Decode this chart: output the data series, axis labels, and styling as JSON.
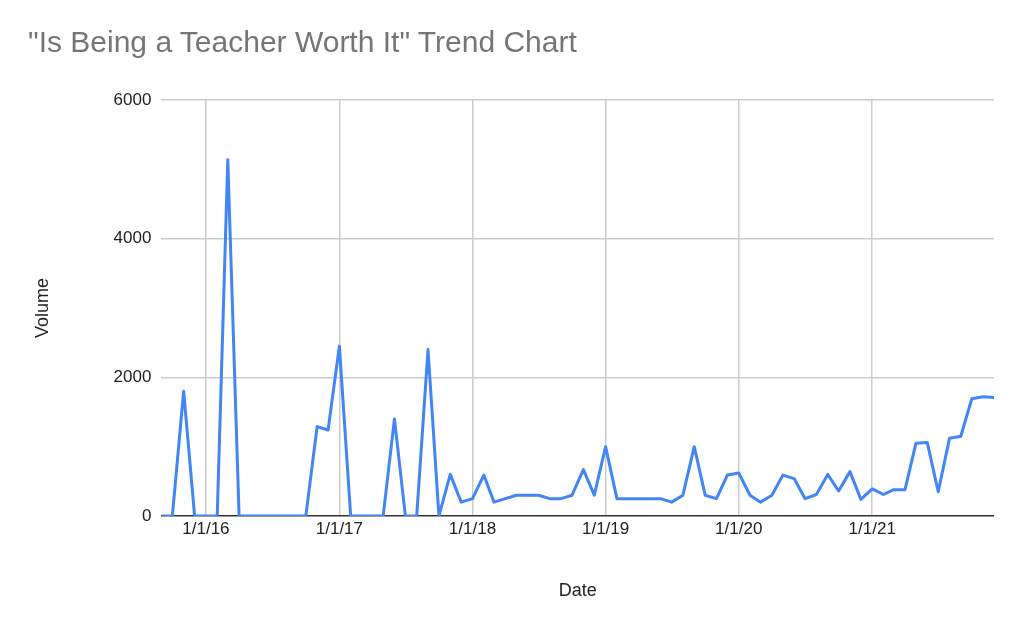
{
  "chart_data": {
    "type": "line",
    "title": "\"Is Being a Teacher Worth It\" Trend Chart",
    "xlabel": "Date",
    "ylabel": "Volume",
    "x": [
      "2015-09",
      "2015-10",
      "2015-11",
      "2015-12",
      "2016-01",
      "2016-02",
      "2016-03",
      "2016-04",
      "2016-05",
      "2016-06",
      "2016-07",
      "2016-08",
      "2016-09",
      "2016-10",
      "2016-11",
      "2016-12",
      "2017-01",
      "2017-02",
      "2017-03",
      "2017-04",
      "2017-05",
      "2017-06",
      "2017-07",
      "2017-08",
      "2017-09",
      "2017-10",
      "2017-11",
      "2017-12",
      "2018-01",
      "2018-02",
      "2018-03",
      "2018-04",
      "2018-05",
      "2018-06",
      "2018-07",
      "2018-08",
      "2018-09",
      "2018-10",
      "2018-11",
      "2018-12",
      "2019-01",
      "2019-02",
      "2019-03",
      "2019-04",
      "2019-05",
      "2019-06",
      "2019-07",
      "2019-08",
      "2019-09",
      "2019-10",
      "2019-11",
      "2019-12",
      "2020-01",
      "2020-02",
      "2020-03",
      "2020-04",
      "2020-05",
      "2020-06",
      "2020-07",
      "2020-08",
      "2020-09",
      "2020-10",
      "2020-11",
      "2020-12",
      "2021-01",
      "2021-02",
      "2021-03",
      "2021-04",
      "2021-05",
      "2021-06",
      "2021-07",
      "2021-08",
      "2021-09",
      "2021-10",
      "2021-11",
      "2021-12"
    ],
    "series": [
      {
        "color": "#4285f4",
        "values": [
          0,
          0,
          1800,
          0,
          0,
          0,
          5140,
          0,
          0,
          0,
          0,
          0,
          0,
          0,
          1290,
          1240,
          2450,
          0,
          0,
          0,
          0,
          1400,
          0,
          0,
          2400,
          0,
          600,
          200,
          250,
          590,
          200,
          250,
          300,
          300,
          300,
          250,
          250,
          300,
          670,
          300,
          1000,
          250,
          250,
          250,
          250,
          250,
          200,
          300,
          1000,
          300,
          250,
          590,
          620,
          300,
          200,
          300,
          590,
          540,
          250,
          310,
          600,
          360,
          640,
          240,
          390,
          310,
          380,
          380,
          1050,
          1060,
          350,
          1120,
          1150,
          1690,
          1720,
          1710
        ]
      }
    ],
    "xlim": [
      "2015-09",
      "2021-12"
    ],
    "xticks": [
      {
        "value": "2016-01-01",
        "label": "1/1/16"
      },
      {
        "value": "2017-01-01",
        "label": "1/1/17"
      },
      {
        "value": "2018-01-01",
        "label": "1/1/18"
      },
      {
        "value": "2019-01-01",
        "label": "1/1/19"
      },
      {
        "value": "2020-01-01",
        "label": "1/1/20"
      },
      {
        "value": "2021-01-01",
        "label": "1/1/21"
      }
    ],
    "ylim": [
      0,
      6000
    ],
    "yticks": [
      0,
      2000,
      4000,
      6000
    ],
    "grid": true,
    "legend": false,
    "marker": "none",
    "line_style": "solid"
  }
}
